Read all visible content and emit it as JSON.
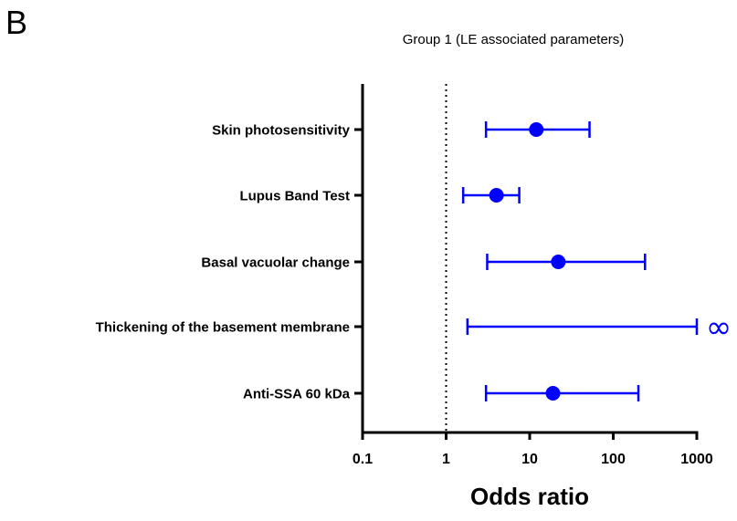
{
  "panel_label": "B",
  "chart_data": {
    "type": "forest",
    "title": "Group 1 (LE associated parameters)",
    "xlabel": "Odds ratio",
    "xscale": "log",
    "xlim": [
      0.1,
      1000
    ],
    "xticks": [
      "0.1",
      "1",
      "10",
      "100",
      "1000"
    ],
    "reference_line": 1,
    "infinity_symbol": "∞",
    "color": "#0000ff",
    "rows": [
      {
        "label": "Skin photosensitivity",
        "or": 12,
        "lower": 3,
        "upper": 52,
        "point": true
      },
      {
        "label": "Lupus Band Test",
        "or": 4,
        "lower": 1.6,
        "upper": 7.5,
        "point": true
      },
      {
        "label": "Basal vacuolar change",
        "or": 22,
        "lower": 3.1,
        "upper": 240,
        "point": true
      },
      {
        "label": "Thickening of the basement membrane",
        "or": null,
        "lower": 1.8,
        "upper": 1000,
        "point": false,
        "upper_infinite": true
      },
      {
        "label": "Anti-SSA 60 kDa",
        "or": 19,
        "lower": 3,
        "upper": 200,
        "point": true
      }
    ]
  }
}
